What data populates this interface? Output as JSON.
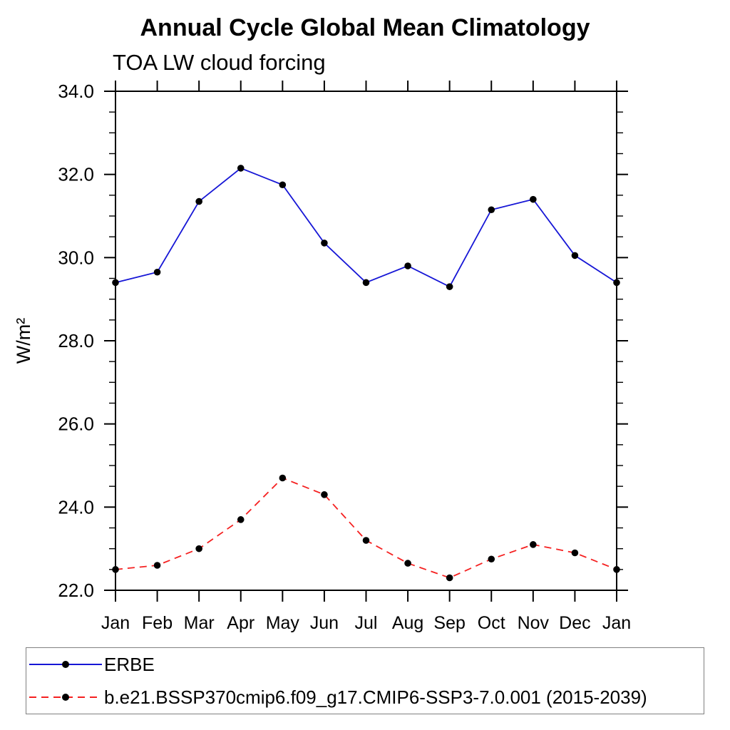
{
  "title": "Annual Cycle Global Mean Climatology",
  "subtitle": "TOA LW cloud forcing",
  "chart_data": {
    "type": "line",
    "title": "Annual Cycle Global Mean Climatology",
    "subtitle": "TOA LW cloud forcing",
    "ylabel": "W/m²",
    "xlabel": "",
    "x_categories": [
      "Jan",
      "Feb",
      "Mar",
      "Apr",
      "May",
      "Jun",
      "Jul",
      "Aug",
      "Sep",
      "Oct",
      "Nov",
      "Dec",
      "Jan"
    ],
    "ylim": [
      22.0,
      34.0
    ],
    "y_major_ticks": [
      22.0,
      24.0,
      26.0,
      28.0,
      30.0,
      32.0,
      34.0
    ],
    "y_tick_labels": [
      "22.0",
      "24.0",
      "26.0",
      "28.0",
      "30.0",
      "32.0",
      "34.0"
    ],
    "y_minor_step": 0.5,
    "grid": false,
    "legend_position": "bottom-left-box",
    "axis_color": "#000000",
    "marker_color": "#000000",
    "series": [
      {
        "name": "ERBE",
        "color": "#1616d6",
        "style": "solid",
        "marker": "circle",
        "values": [
          29.4,
          29.65,
          31.35,
          32.15,
          31.75,
          30.35,
          29.4,
          29.8,
          29.3,
          31.15,
          31.4,
          30.05,
          29.4
        ]
      },
      {
        "name": "b.e21.BSSP370cmip6.f09_g17.CMIP6-SSP3-7.0.001 (2015-2039)",
        "color": "#f52020",
        "style": "dashed",
        "marker": "circle",
        "values": [
          22.5,
          22.6,
          23.0,
          23.7,
          24.7,
          24.3,
          23.2,
          22.65,
          22.3,
          22.75,
          23.1,
          22.9,
          22.5
        ]
      }
    ]
  }
}
